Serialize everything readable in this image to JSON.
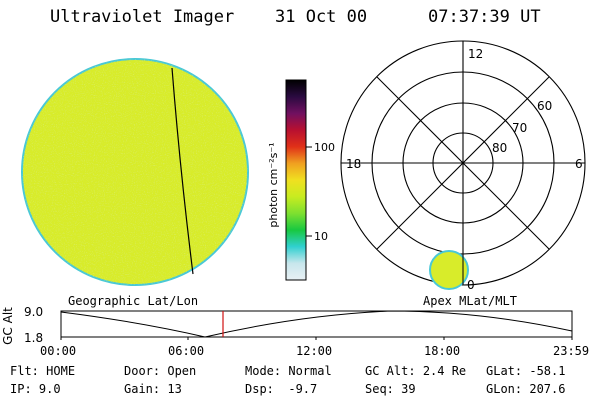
{
  "header": {
    "instrument": "Ultraviolet Imager",
    "date": "31 Oct 00",
    "time": "07:37:39 UT"
  },
  "colors": {
    "image_fill": "#d8ec2a",
    "image_speckle": "#b8e030",
    "image_rim": "#49c8d6",
    "timeline_marker": "#d01010",
    "background": "#ffffff",
    "line": "#000000"
  },
  "colorbar": {
    "unit_label": "photon cm⁻²s⁻¹",
    "ticks": [
      "100",
      "10"
    ],
    "stops": [
      "#e8f0f4",
      "#c8e6ec",
      "#30d0d0",
      "#18c840",
      "#7ee030",
      "#c8ec20",
      "#f0e020",
      "#f0a020",
      "#e03018",
      "#b81030",
      "#701060",
      "#2a0a40",
      "#000000"
    ]
  },
  "polar_plot": {
    "mlt_labels": {
      "top": "12",
      "left": "18",
      "right": "6",
      "bottom": "0"
    },
    "lat_labels": [
      "60",
      "70",
      "80"
    ]
  },
  "timeline": {
    "left_title": "Geographic Lat/Lon",
    "right_title": "Apex MLat/MLT",
    "axis_label": "GC Alt",
    "y_max": "9.0",
    "y_min": "1.8",
    "x_ticks": [
      "00:00",
      "06:00",
      "12:00",
      "18:00",
      "23:59"
    ],
    "marker_time": "07:37:39"
  },
  "status": {
    "filter": {
      "label": "Flt:",
      "value": "HOME"
    },
    "ip": {
      "label": "IP:",
      "value": "9.0"
    },
    "door": {
      "label": "Door:",
      "value": "Open"
    },
    "gain": {
      "label": "Gain:",
      "value": "13"
    },
    "mode": {
      "label": "Mode:",
      "value": "Normal"
    },
    "dsp": {
      "label": "Dsp:",
      "value": "-9.7"
    },
    "gc_alt": {
      "label": "GC Alt:",
      "value": "2.4 Re"
    },
    "seq": {
      "label": "Seq:",
      "value": "39"
    },
    "glat": {
      "label": "GLat:",
      "value": "-58.1"
    },
    "glon": {
      "label": "GLon:",
      "value": "207.6"
    }
  }
}
